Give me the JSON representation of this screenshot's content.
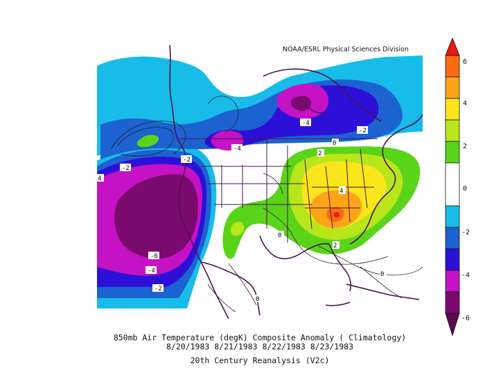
{
  "credit": "NOAA/ESRL Physical Sciences Division",
  "title_line1": "850mb Air Temperature (degK) Composite Anomaly ( Climatology)",
  "title_line2": "8/20/1983 8/21/1983 8/22/1983 8/23/1983",
  "title_line3": "20th Century Reanalysis (V2c)",
  "colors": {
    "m6": "#7a0a6e",
    "m5": "#c412c4",
    "m4": "#2c10d8",
    "m3": "#1c62d0",
    "m2": "#18bce8",
    "zero": "#ffffff",
    "p1": "#5ad418",
    "p2": "#b8e61a",
    "p3": "#fae61a",
    "p4": "#fca516",
    "p5": "#fa6a12",
    "p6": "#e81a10"
  },
  "colorbar": {
    "ticks": [
      "6",
      "4",
      "2",
      "0",
      "-2",
      "-4",
      "-6"
    ]
  },
  "contour_labels": [
    {
      "text": "-4"
    },
    {
      "text": "-2"
    },
    {
      "text": "-4"
    },
    {
      "text": "-2"
    },
    {
      "text": "-2"
    },
    {
      "text": "4"
    },
    {
      "text": "-6"
    },
    {
      "text": "-4"
    },
    {
      "text": "-2"
    },
    {
      "text": "2"
    },
    {
      "text": "0"
    },
    {
      "text": "4"
    },
    {
      "text": "2"
    },
    {
      "text": "0"
    },
    {
      "text": "0"
    },
    {
      "text": "0"
    }
  ]
}
